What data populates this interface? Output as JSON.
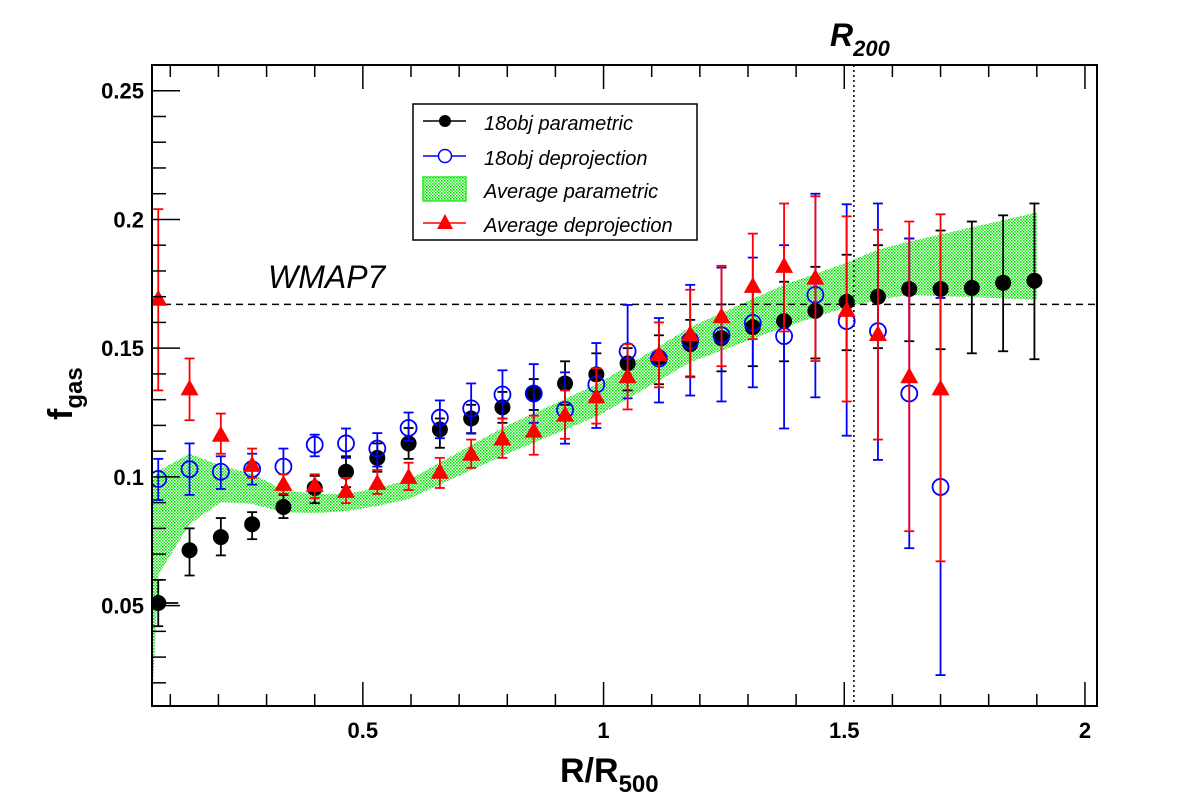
{
  "chart_data": {
    "type": "scatter",
    "title": "",
    "xlabel": "R/R",
    "xlabel_sub": "500",
    "ylabel": "f",
    "ylabel_sub": "gas",
    "xlim": [
      0.062,
      2.025
    ],
    "ylim": [
      0.011,
      0.26
    ],
    "xticks": [
      0.5,
      1,
      1.5,
      2
    ],
    "xtick_labels": [
      "0.5",
      "1",
      "1.5",
      "2"
    ],
    "yticks": [
      0.05,
      0.1,
      0.15,
      0.2,
      0.25
    ],
    "ytick_labels": [
      "0.05",
      "0.1",
      "0.15",
      "0.2",
      "0.25"
    ],
    "grid": false,
    "legend_position": "top-center",
    "annotations": {
      "hline": {
        "y": 0.167,
        "label": "WMAP7",
        "style": "dashed"
      },
      "vline": {
        "x": 1.52,
        "label": "R",
        "label_sub": "200",
        "style": "dotted"
      }
    },
    "series": [
      {
        "name": "18obj parametric",
        "marker": "filled-circle",
        "color": "#000000",
        "x": [
          0.075,
          0.14,
          0.205,
          0.27,
          0.335,
          0.4,
          0.465,
          0.53,
          0.595,
          0.66,
          0.725,
          0.79,
          0.855,
          0.92,
          0.985,
          1.05,
          1.115,
          1.18,
          1.245,
          1.31,
          1.375,
          1.44,
          1.505,
          1.57,
          1.635,
          1.7,
          1.765,
          1.83,
          1.895
        ],
        "y": [
          0.051,
          0.0715,
          0.0766,
          0.0816,
          0.0883,
          0.0957,
          0.102,
          0.1074,
          0.113,
          0.1184,
          0.1227,
          0.127,
          0.1324,
          0.1363,
          0.1398,
          0.1441,
          0.1465,
          0.1516,
          0.1539,
          0.1582,
          0.1605,
          0.1645,
          0.168,
          0.17,
          0.173,
          0.173,
          0.1734,
          0.1754,
          0.1762
        ],
        "err_low": [
          0.042,
          0.0617,
          0.0695,
          0.0758,
          0.084,
          0.0898,
          0.096,
          0.102,
          0.107,
          0.1113,
          0.117,
          0.121,
          0.126,
          0.128,
          0.131,
          0.1336,
          0.136,
          0.139,
          0.141,
          0.143,
          0.1449,
          0.146,
          0.1492,
          0.15,
          0.1527,
          0.1496,
          0.148,
          0.1488,
          0.1457
        ],
        "err_high": [
          0.06,
          0.08,
          0.084,
          0.0863,
          0.093,
          0.1004,
          0.108,
          0.113,
          0.119,
          0.1227,
          0.128,
          0.133,
          0.138,
          0.1449,
          0.148,
          0.15,
          0.155,
          0.161,
          0.167,
          0.172,
          0.1758,
          0.1816,
          0.1863,
          0.19,
          0.1926,
          0.1957,
          0.1992,
          0.2016,
          0.2062
        ]
      },
      {
        "name": "18obj deprojection",
        "marker": "open-circle",
        "color": "#0000ff",
        "x": [
          0.075,
          0.14,
          0.205,
          0.27,
          0.335,
          0.4,
          0.465,
          0.53,
          0.595,
          0.66,
          0.725,
          0.79,
          0.855,
          0.92,
          0.985,
          1.05,
          1.115,
          1.18,
          1.245,
          1.31,
          1.375,
          1.44,
          1.505,
          1.57,
          1.635,
          1.7
        ],
        "y": [
          0.0992,
          0.103,
          0.102,
          0.103,
          0.104,
          0.1125,
          0.113,
          0.111,
          0.119,
          0.123,
          0.1266,
          0.132,
          0.1324,
          0.126,
          0.1359,
          0.1488,
          0.146,
          0.153,
          0.155,
          0.1598,
          0.1547,
          0.1707,
          0.1605,
          0.1566,
          0.1324,
          0.0961
        ],
        "err_low": [
          0.091,
          0.093,
          0.0953,
          0.097,
          0.0973,
          0.108,
          0.1074,
          0.104,
          0.114,
          0.115,
          0.1168,
          0.1227,
          0.121,
          0.1129,
          0.119,
          0.1305,
          0.1289,
          0.1316,
          0.1293,
          0.1348,
          0.1188,
          0.1309,
          0.116,
          0.1066,
          0.0723,
          0.023
        ],
        "err_high": [
          0.107,
          0.113,
          0.108,
          0.109,
          0.111,
          0.1164,
          0.1188,
          0.117,
          0.125,
          0.1297,
          0.1363,
          0.1414,
          0.1438,
          0.1406,
          0.152,
          0.1668,
          0.1617,
          0.1746,
          0.1813,
          0.1852,
          0.19,
          0.21,
          0.2059,
          0.2062,
          0.1926,
          0.1695
        ]
      },
      {
        "name": "Average deprojection",
        "marker": "filled-triangle",
        "color": "#ff0000",
        "x": [
          0.075,
          0.14,
          0.205,
          0.27,
          0.335,
          0.4,
          0.465,
          0.53,
          0.595,
          0.66,
          0.725,
          0.79,
          0.855,
          0.92,
          0.985,
          1.05,
          1.115,
          1.18,
          1.245,
          1.31,
          1.375,
          1.44,
          1.505,
          1.57,
          1.635,
          1.7
        ],
        "y": [
          0.1688,
          0.134,
          0.116,
          0.1043,
          0.0969,
          0.0965,
          0.0942,
          0.0973,
          0.0996,
          0.1016,
          0.1086,
          0.1145,
          0.1176,
          0.1238,
          0.1309,
          0.1387,
          0.1473,
          0.1551,
          0.162,
          0.1738,
          0.1816,
          0.177,
          0.1645,
          0.1551,
          0.1387,
          0.134
        ],
        "err_low": [
          0.1336,
          0.122,
          0.109,
          0.0996,
          0.0934,
          0.0918,
          0.0898,
          0.0934,
          0.0949,
          0.0957,
          0.1035,
          0.1074,
          0.1086,
          0.1148,
          0.1207,
          0.1262,
          0.1348,
          0.1387,
          0.143,
          0.1535,
          0.1565,
          0.145,
          0.1293,
          0.1145,
          0.0789,
          0.0672
        ],
        "err_high": [
          0.204,
          0.146,
          0.1246,
          0.111,
          0.101,
          0.101,
          0.0996,
          0.1027,
          0.1055,
          0.1074,
          0.1145,
          0.1227,
          0.1238,
          0.1336,
          0.1422,
          0.1516,
          0.16,
          0.1727,
          0.182,
          0.1945,
          0.2062,
          0.209,
          0.2012,
          0.196,
          0.1992,
          0.202
        ]
      }
    ],
    "band": {
      "name": "Average parametric",
      "color": "#00dd00",
      "x": [
        0.062,
        0.075,
        0.14,
        0.205,
        0.27,
        0.335,
        0.4,
        0.465,
        0.53,
        0.595,
        0.79,
        0.99,
        1.18,
        1.375,
        1.505,
        1.57,
        1.635,
        1.9
      ],
      "upper": [
        0.098,
        0.1023,
        0.109,
        0.1043,
        0.1012,
        0.0949,
        0.0934,
        0.0934,
        0.0957,
        0.0988,
        0.1191,
        0.1363,
        0.1582,
        0.1746,
        0.1832,
        0.1883,
        0.1914,
        0.2027
      ],
      "lower": [
        0.011,
        0.062,
        0.0816,
        0.0902,
        0.0895,
        0.0863,
        0.0859,
        0.0867,
        0.0887,
        0.0914,
        0.1082,
        0.1238,
        0.1445,
        0.1582,
        0.166,
        0.1688,
        0.1707,
        0.1688
      ]
    },
    "legend": [
      "18obj parametric",
      "18obj deprojection",
      "Average parametric",
      "Average deprojection"
    ]
  }
}
